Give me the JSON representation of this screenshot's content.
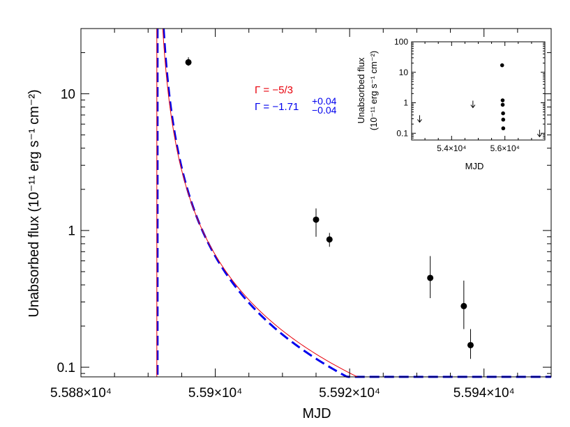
{
  "chart_data": [
    {
      "type": "scatter",
      "xlabel": "MJD",
      "ylabel": "Unabsorbed flux (10⁻¹¹ erg s⁻¹ cm⁻²)",
      "xscale": "linear",
      "yscale": "log",
      "xlim": [
        55880,
        55950
      ],
      "ylim": [
        0.085,
        30
      ],
      "x_ticks": [
        {
          "value": 55880,
          "label": "5.588×10⁴"
        },
        {
          "value": 55900,
          "label": "5.59×10⁴"
        },
        {
          "value": 55920,
          "label": "5.592×10⁴"
        },
        {
          "value": 55940,
          "label": "5.594×10⁴"
        }
      ],
      "y_ticks": [
        {
          "value": 0.1,
          "label": "0.1"
        },
        {
          "value": 1,
          "label": "1"
        },
        {
          "value": 10,
          "label": "10"
        }
      ],
      "points": [
        {
          "x": 55896.0,
          "y": 17.0,
          "err_lo": 1.0,
          "err_hi": 1.5
        },
        {
          "x": 55915.0,
          "y": 1.2,
          "err_lo": 0.3,
          "err_hi": 0.25
        },
        {
          "x": 55917.0,
          "y": 0.86,
          "err_lo": 0.1,
          "err_hi": 0.1
        },
        {
          "x": 55932.0,
          "y": 0.45,
          "err_lo": 0.13,
          "err_hi": 0.2
        },
        {
          "x": 55937.0,
          "y": 0.28,
          "err_lo": 0.09,
          "err_hi": 0.15
        },
        {
          "x": 55938.0,
          "y": 0.145,
          "err_lo": 0.03,
          "err_hi": 0.045
        }
      ],
      "series": [
        {
          "name": "Γ = −5/3",
          "color": "#e8000b",
          "style": "solid",
          "t0": 55891.3,
          "A": 24.4,
          "index": 1.6667
        },
        {
          "name": "Γ = −1.71",
          "color": "#0000ee",
          "style": "dashed",
          "t0": 55891.4,
          "A": 25.7,
          "index": 1.71
        }
      ],
      "annotations": {
        "red_label": "Γ = −5/3",
        "blue_label": "Γ = −1.71",
        "blue_err_hi": "+0.04",
        "blue_err_lo": "−0.04"
      }
    },
    {
      "type": "scatter",
      "role": "inset",
      "xlabel": "MJD",
      "ylabel_line1": "Unabsorbed flux",
      "ylabel_line2": "(10⁻¹¹ erg s⁻¹ cm⁻²)",
      "xscale": "linear",
      "yscale": "log",
      "xlim": [
        52500,
        57500
      ],
      "ylim": [
        0.06,
        100
      ],
      "x_ticks": [
        {
          "value": 54000,
          "label": "5.4×10⁴"
        },
        {
          "value": 56000,
          "label": "5.6×10⁴"
        }
      ],
      "y_ticks": [
        {
          "value": 0.1,
          "label": "0.1"
        },
        {
          "value": 1,
          "label": "1"
        },
        {
          "value": 10,
          "label": "10"
        },
        {
          "value": 100,
          "label": "100"
        }
      ],
      "points": [
        {
          "x": 55896,
          "y": 17.0
        },
        {
          "x": 55915,
          "y": 1.2
        },
        {
          "x": 55917,
          "y": 0.86
        },
        {
          "x": 55932,
          "y": 0.45
        },
        {
          "x": 55937,
          "y": 0.28
        },
        {
          "x": 55938,
          "y": 0.145
        }
      ],
      "upper_limits": [
        {
          "x": 52800,
          "y": 0.3
        },
        {
          "x": 54800,
          "y": 0.9
        },
        {
          "x": 57300,
          "y": 0.1
        }
      ]
    }
  ]
}
